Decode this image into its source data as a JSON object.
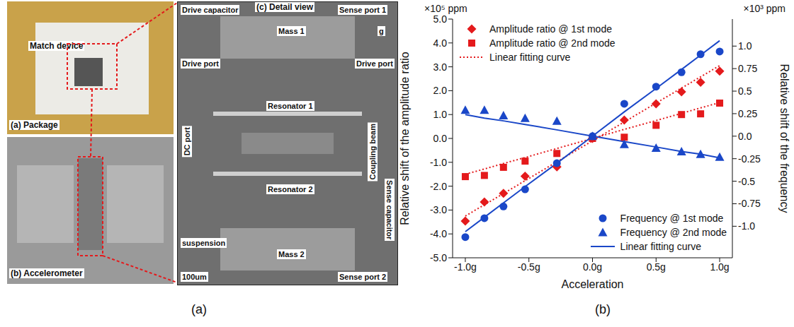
{
  "captions": [
    "(a)",
    "(b)"
  ],
  "photos": {
    "package": {
      "label": "(a) Package",
      "annotation": "Match device"
    },
    "accelerometer": {
      "label": "(b) Accelerometer"
    },
    "detail": {
      "label": "(c) Detail view",
      "annotations": [
        "Drive capacitor",
        "Sense port 1",
        "Mass 1",
        "g",
        "Drive port",
        "Drive port",
        "Resonator 1",
        "DC port",
        "Coupling beam",
        "Resonator 2",
        "Sense capacitor",
        "suspension",
        "Mass 2",
        "Sense port 2",
        "100um"
      ]
    }
  },
  "chart_data": {
    "type": "scatter",
    "xlabel": "Acceleration",
    "ylabel": "Relative shift of the amplitude ratio",
    "y2label": "Relative shift of the frequency",
    "y_unit": "×10⁵ ppm",
    "y2_unit": "×10³ ppm",
    "x": [
      -1.0,
      -0.85,
      -0.7,
      -0.53,
      -0.28,
      0,
      0.25,
      0.5,
      0.7,
      0.85,
      1.0
    ],
    "xlim": [
      -1.1,
      1.1
    ],
    "xticks": [
      {
        "value": -1,
        "label": "-1.0g"
      },
      {
        "value": -0.5,
        "label": "-0.5g"
      },
      {
        "value": 0,
        "label": "0.0g"
      },
      {
        "value": 0.5,
        "label": "0.5g"
      },
      {
        "value": 1,
        "label": "1.0g"
      }
    ],
    "ylim": [
      -5,
      5
    ],
    "yticks": [
      {
        "value": -5,
        "label": "-5.0"
      },
      {
        "value": -4,
        "label": "-4.0"
      },
      {
        "value": -3,
        "label": "-3.0"
      },
      {
        "value": -2,
        "label": "-2.0"
      },
      {
        "value": -1,
        "label": "-1.0"
      },
      {
        "value": 0,
        "label": "0.0"
      },
      {
        "value": 1,
        "label": "1.0"
      },
      {
        "value": 2,
        "label": "2.0"
      },
      {
        "value": 3,
        "label": "3.0"
      },
      {
        "value": 4,
        "label": "4.0"
      },
      {
        "value": 5,
        "label": "5.0"
      }
    ],
    "y2lim": [
      -1.35,
      1.3
    ],
    "y2ticks": [
      {
        "value": -1,
        "label": "-1.0"
      },
      -0.75,
      -0.5,
      -0.25,
      {
        "value": 0,
        "label": "0.0"
      },
      0.25,
      0.5,
      0.75,
      {
        "value": 1,
        "label": "1.0"
      }
    ],
    "grid": false,
    "series": [
      {
        "name": "Amplitude ratio @ 1st mode",
        "type": "scatter",
        "color": "#e41a1c",
        "marker": "diamond",
        "legend": "upper left",
        "values": [
          -3.46,
          -2.66,
          -2.3,
          -1.58,
          -1.19,
          0,
          0.77,
          1.45,
          1.95,
          2.35,
          2.82
        ]
      },
      {
        "name": "Amplitude ratio @ 2nd mode",
        "type": "scatter",
        "color": "#e41a1c",
        "marker": "square",
        "legend": "upper left",
        "values": [
          -1.6,
          -1.55,
          -1.21,
          -0.95,
          -0.63,
          0,
          0.05,
          0.55,
          1.0,
          1.03,
          1.48
        ]
      },
      {
        "name": "Linear fitting curve",
        "type": "line",
        "color": "#e41a1c",
        "line_style": "dotted",
        "legend": "upper left",
        "values": [
          -3.25,
          -2.78,
          -2.31,
          -1.77,
          -0.98,
          -0.1,
          0.69,
          1.48,
          2.11,
          2.58,
          3.05
        ]
      },
      {
        "name": "Linear fitting curve",
        "type": "line",
        "color": "#e41a1c",
        "line_style": "dotted",
        "legend": "upper left",
        "values": [
          -1.5,
          -1.28,
          -1.05,
          -0.8,
          -0.42,
          0,
          0.38,
          0.75,
          1.05,
          1.28,
          1.5
        ]
      },
      {
        "name": "Frequency @ 1st mode",
        "type": "scatter",
        "color": "#1a47c8",
        "marker": "circle",
        "axis": "y2",
        "legend": "lower right",
        "values": [
          -1.12,
          -0.91,
          -0.78,
          -0.59,
          -0.3,
          0,
          0.36,
          0.55,
          0.71,
          0.91,
          0.94
        ]
      },
      {
        "name": "Frequency @ 2nd mode",
        "type": "scatter",
        "color": "#1a47c8",
        "marker": "triangle",
        "axis": "y2",
        "legend": "lower right",
        "values": [
          0.29,
          0.29,
          0.23,
          0.2,
          0.17,
          0,
          -0.09,
          -0.13,
          -0.17,
          -0.2,
          -0.23
        ]
      },
      {
        "name": "Linear fitting curve",
        "type": "line",
        "color": "#1a47c8",
        "line_style": "solid",
        "axis": "y2",
        "legend": "lower right",
        "values": [
          -1.06,
          -0.9,
          -0.74,
          -0.56,
          -0.3,
          0,
          0.27,
          0.53,
          0.74,
          0.9,
          1.06
        ]
      },
      {
        "name": "Linear fitting curve",
        "type": "line",
        "color": "#1a47c8",
        "line_style": "solid",
        "axis": "y2",
        "legend": "lower right",
        "values": [
          0.24,
          0.2,
          0.17,
          0.13,
          0.07,
          0,
          -0.06,
          -0.12,
          -0.17,
          -0.2,
          -0.24
        ]
      }
    ]
  }
}
